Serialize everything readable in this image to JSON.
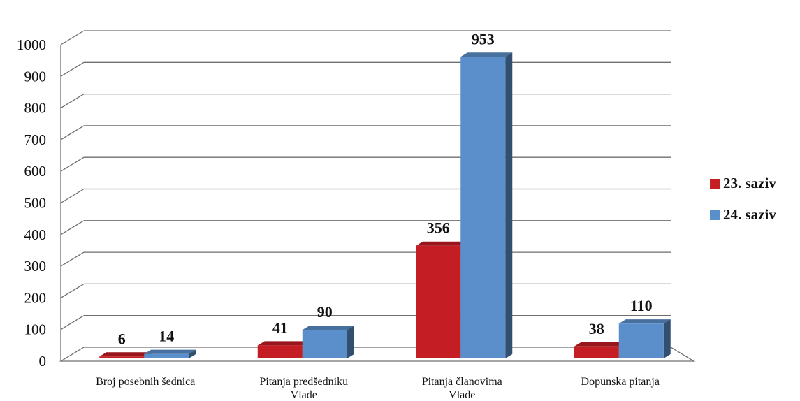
{
  "chart_data": {
    "type": "bar",
    "title": "",
    "xlabel": "",
    "ylabel": "",
    "ylim": [
      0,
      1000
    ],
    "yticks": [
      0,
      100,
      200,
      300,
      400,
      500,
      600,
      700,
      800,
      900,
      1000
    ],
    "grid": true,
    "legend_position": "right",
    "categories": [
      [
        "Broj posebnih šednica"
      ],
      [
        "Pitanja predšedniku",
        "Vlade"
      ],
      [
        "Pitanja članovima",
        "Vlade"
      ],
      [
        "Dopunska pitanja"
      ]
    ],
    "series": [
      {
        "name": "23. saziv",
        "color": "#c41e24",
        "values": [
          6,
          41,
          356,
          38
        ]
      },
      {
        "name": "24. saziv",
        "color": "#5b8fcc",
        "values": [
          14,
          90,
          953,
          110
        ]
      }
    ]
  }
}
